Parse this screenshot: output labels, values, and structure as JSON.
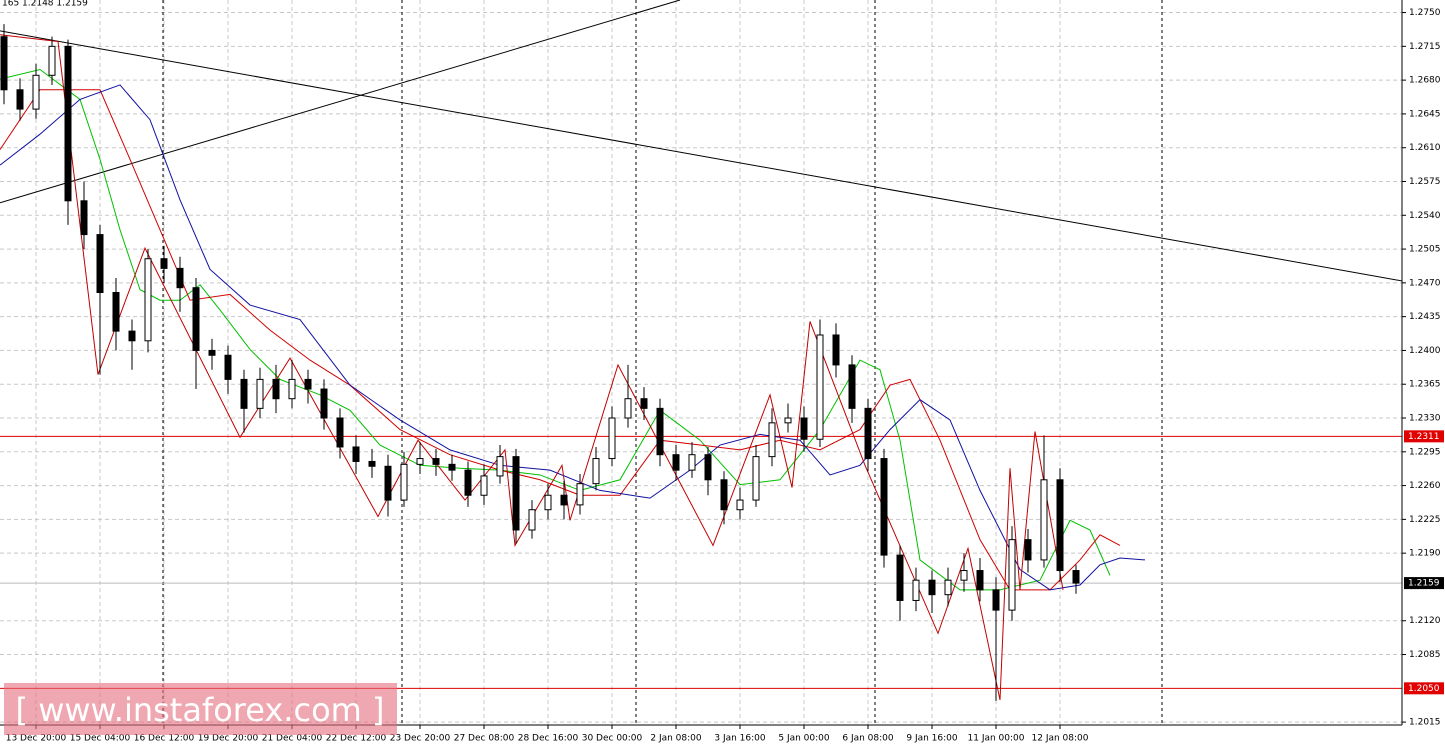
{
  "chart_data": {
    "type": "candlestick",
    "info": "165 1.2148 1.2159",
    "watermark": "[ www.instaforex.com ]",
    "xlim": [
      0,
      175.25
    ],
    "ylim": [
      1.2012,
      1.2763
    ],
    "xticks": [
      {
        "value": 4.5,
        "label": "13 Dec 20:00"
      },
      {
        "value": 12.5,
        "label": "15 Dec 04:00"
      },
      {
        "value": 20.5,
        "label": "16 Dec 12:00"
      },
      {
        "value": 28.5,
        "label": "19 Dec 20:00"
      },
      {
        "value": 36.5,
        "label": "21 Dec 04:00"
      },
      {
        "value": 44.5,
        "label": "22 Dec 12:00"
      },
      {
        "value": 52.5,
        "label": "23 Dec 20:00"
      },
      {
        "value": 60.5,
        "label": "27 Dec 08:00"
      },
      {
        "value": 68.5,
        "label": "28 Dec 16:00"
      },
      {
        "value": 76.5,
        "label": "30 Dec 00:00"
      },
      {
        "value": 84.5,
        "label": "2 Jan 08:00"
      },
      {
        "value": 92.5,
        "label": "3 Jan 16:00"
      },
      {
        "value": 100.5,
        "label": "5 Jan 00:00"
      },
      {
        "value": 108.5,
        "label": "6 Jan 08:00"
      },
      {
        "value": 116.5,
        "label": "9 Jan 16:00"
      },
      {
        "value": 124.5,
        "label": "11 Jan 00:00"
      },
      {
        "value": 132.5,
        "label": "12 Jan 08:00"
      }
    ],
    "yticks": [
      {
        "value": 1.275,
        "label": "1.2750"
      },
      1.2715,
      {
        "value": 1.268,
        "label": "1.2680"
      },
      1.2645,
      {
        "value": 1.261,
        "label": "1.2610"
      },
      1.2575,
      {
        "value": 1.254,
        "label": "1.2540"
      },
      1.2505,
      {
        "value": 1.247,
        "label": "1.2470"
      },
      1.2435,
      {
        "value": 1.24,
        "label": "1.2400"
      },
      1.2365,
      {
        "value": 1.233,
        "label": "1.2330"
      },
      1.2295,
      {
        "value": 1.226,
        "label": "1.2260"
      },
      1.2225,
      {
        "value": 1.219,
        "label": "1.2190"
      },
      {
        "value": 1.212,
        "label": "1.2120"
      },
      1.2085,
      1.2015
    ],
    "grid": true,
    "bull_color": "#ffffff",
    "bear_color": "#000000",
    "candles": {
      "x": [
        0.5,
        2.5,
        4.5,
        6.5,
        8.5,
        10.5,
        12.5,
        14.5,
        16.5,
        18.5,
        20.5,
        22.5,
        24.5,
        26.5,
        28.5,
        30.5,
        32.5,
        34.5,
        36.5,
        38.5,
        40.5,
        42.5,
        44.5,
        46.5,
        48.5,
        50.5,
        52.5,
        54.5,
        56.5,
        58.5,
        60.5,
        62.5,
        64.5,
        66.5,
        68.5,
        70.5,
        72.5,
        74.5,
        76.5,
        78.5,
        80.5,
        82.5,
        84.5,
        86.5,
        88.5,
        90.5,
        92.5,
        94.5,
        96.5,
        98.5,
        100.5,
        102.5,
        104.5,
        106.5,
        108.5,
        110.5,
        112.5,
        114.5,
        116.5,
        118.5,
        120.5,
        122.5,
        124.5,
        126.5,
        128.5,
        130.5,
        132.5,
        134.5
      ],
      "ohlc": [
        [
          1.2725,
          1.2738,
          1.2655,
          1.267
        ],
        [
          1.267,
          1.2682,
          1.2638,
          1.265
        ],
        [
          1.265,
          1.2697,
          1.264,
          1.2685
        ],
        [
          1.2685,
          1.2725,
          1.2675,
          1.2715
        ],
        [
          1.2715,
          1.2722,
          1.253,
          1.2555
        ],
        [
          1.2555,
          1.2575,
          1.2505,
          1.252
        ],
        [
          1.252,
          1.253,
          1.2375,
          1.246
        ],
        [
          1.246,
          1.2475,
          1.24,
          1.242
        ],
        [
          1.242,
          1.2432,
          1.238,
          1.241
        ],
        [
          1.241,
          1.2505,
          1.2398,
          1.2495
        ],
        [
          1.2495,
          1.2508,
          1.247,
          1.2485
        ],
        [
          1.2485,
          1.2497,
          1.244,
          1.2465
        ],
        [
          1.2465,
          1.2475,
          1.236,
          1.24
        ],
        [
          1.24,
          1.2412,
          1.238,
          1.2395
        ],
        [
          1.2395,
          1.2405,
          1.2355,
          1.237
        ],
        [
          1.237,
          1.238,
          1.2315,
          1.234
        ],
        [
          1.234,
          1.2382,
          1.233,
          1.237
        ],
        [
          1.237,
          1.2385,
          1.2335,
          1.235
        ],
        [
          1.235,
          1.239,
          1.234,
          1.237
        ],
        [
          1.237,
          1.238,
          1.2345,
          1.236
        ],
        [
          1.236,
          1.237,
          1.2318,
          1.233
        ],
        [
          1.233,
          1.234,
          1.2288,
          1.23
        ],
        [
          1.23,
          1.2312,
          1.2272,
          1.2285
        ],
        [
          1.2285,
          1.2298,
          1.2268,
          1.228
        ],
        [
          1.228,
          1.2292,
          1.2228,
          1.2245
        ],
        [
          1.2245,
          1.2295,
          1.2238,
          1.2282
        ],
        [
          1.2282,
          1.2305,
          1.2272,
          1.2288
        ],
        [
          1.2288,
          1.2298,
          1.227,
          1.2282
        ],
        [
          1.2282,
          1.2292,
          1.2265,
          1.2276
        ],
        [
          1.2276,
          1.2285,
          1.2238,
          1.225
        ],
        [
          1.225,
          1.2282,
          1.224,
          1.227
        ],
        [
          1.227,
          1.2302,
          1.2262,
          1.229
        ],
        [
          1.229,
          1.2298,
          1.22,
          1.2214
        ],
        [
          1.2214,
          1.2245,
          1.2205,
          1.2235
        ],
        [
          1.2235,
          1.2262,
          1.2225,
          1.225
        ],
        [
          1.225,
          1.2265,
          1.2225,
          1.224
        ],
        [
          1.224,
          1.2272,
          1.223,
          1.2262
        ],
        [
          1.2262,
          1.23,
          1.2255,
          1.2288
        ],
        [
          1.2288,
          1.2342,
          1.228,
          1.233
        ],
        [
          1.233,
          1.2385,
          1.232,
          1.235
        ],
        [
          1.235,
          1.2362,
          1.2328,
          1.234
        ],
        [
          1.234,
          1.235,
          1.228,
          1.2292
        ],
        [
          1.2292,
          1.2302,
          1.2265,
          1.2276
        ],
        [
          1.2276,
          1.2305,
          1.2268,
          1.2292
        ],
        [
          1.2292,
          1.23,
          1.225,
          1.2266
        ],
        [
          1.2266,
          1.2275,
          1.222,
          1.2235
        ],
        [
          1.2235,
          1.2258,
          1.2225,
          1.2245
        ],
        [
          1.2245,
          1.2302,
          1.2238,
          1.229
        ],
        [
          1.229,
          1.234,
          1.228,
          1.2325
        ],
        [
          1.2325,
          1.2345,
          1.2315,
          1.233
        ],
        [
          1.233,
          1.2342,
          1.2295,
          1.2308
        ],
        [
          1.2308,
          1.2432,
          1.23,
          1.2416
        ],
        [
          1.2416,
          1.2428,
          1.2372,
          1.2385
        ],
        [
          1.2385,
          1.2395,
          1.2325,
          1.234
        ],
        [
          1.234,
          1.235,
          1.2275,
          1.2288
        ],
        [
          1.2288,
          1.2298,
          1.2175,
          1.2188
        ],
        [
          1.2188,
          1.2198,
          1.212,
          1.2141
        ],
        [
          1.2141,
          1.2175,
          1.213,
          1.2162
        ],
        [
          1.2162,
          1.2172,
          1.2128,
          1.2147
        ],
        [
          1.2147,
          1.2175,
          1.2135,
          1.2162
        ],
        [
          1.2162,
          1.219,
          1.215,
          1.2172
        ],
        [
          1.2172,
          1.2185,
          1.214,
          1.2152
        ],
        [
          1.2152,
          1.2165,
          1.2037,
          1.2131
        ],
        [
          1.2131,
          1.2218,
          1.212,
          1.2204
        ],
        [
          1.2204,
          1.2215,
          1.217,
          1.2183
        ],
        [
          1.2183,
          1.2312,
          1.2175,
          1.2266
        ],
        [
          1.2266,
          1.2278,
          1.216,
          1.2172
        ],
        [
          1.2172,
          1.2178,
          1.2148,
          1.2159
        ]
      ]
    },
    "series": [
      {
        "color": "#00c000",
        "x": [
          0,
          5,
          10,
          12.5,
          15,
          17.5,
          20,
          22.5,
          25,
          27.5,
          31.25,
          35,
          40,
          43.75,
          47.5,
          52.5,
          57.5,
          62.5,
          67.5,
          72.5,
          77.5,
          82.5,
          87.5,
          92.5,
          97.5,
          102.5,
          107.5,
          110,
          112.5,
          115,
          120,
          125,
          130,
          133.75,
          136.25,
          138.75
        ],
        "values": [
          1.2681,
          1.2691,
          1.266,
          1.2598,
          1.2525,
          1.2463,
          1.2452,
          1.2452,
          1.2468,
          1.2442,
          1.2401,
          1.237,
          1.2354,
          1.2338,
          1.2302,
          1.2281,
          1.2278,
          1.2276,
          1.2271,
          1.2255,
          1.2266,
          1.2338,
          1.2307,
          1.2261,
          1.2266,
          1.2318,
          1.239,
          1.238,
          1.2307,
          1.2183,
          1.2152,
          1.2152,
          1.2162,
          1.2224,
          1.2214,
          1.2167
        ]
      },
      {
        "color": "#d00000",
        "x": [
          0,
          5,
          12.5,
          16.25,
          20,
          23.75,
          28.75,
          33.75,
          38.75,
          43.75,
          50,
          56.25,
          62.5,
          67.5,
          72.5,
          77.5,
          82.5,
          87.5,
          92.5,
          97.5,
          102.5,
          107.5,
          111.25,
          113.75,
          117.5,
          122.5,
          126.25,
          131.25,
          135,
          137.5,
          140
        ],
        "values": [
          1.2608,
          1.267,
          1.267,
          1.2598,
          1.2525,
          1.2452,
          1.2458,
          1.2421,
          1.239,
          1.2364,
          1.2318,
          1.2292,
          1.2276,
          1.2266,
          1.225,
          1.225,
          1.2307,
          1.2302,
          1.2297,
          1.2307,
          1.2297,
          1.2318,
          1.2364,
          1.237,
          1.2307,
          1.2204,
          1.2152,
          1.2152,
          1.2183,
          1.2209,
          1.2198
        ]
      },
      {
        "color": "#1010a0",
        "x": [
          0,
          5,
          10,
          15,
          18.75,
          22.5,
          26.25,
          31.25,
          37.5,
          43.75,
          50,
          56.25,
          62.5,
          68.75,
          75,
          81.25,
          86.25,
          90,
          95,
          100,
          103.75,
          107.5,
          111.25,
          115,
          118.75,
          122.5,
          127.5,
          131.25,
          135,
          137.5,
          140,
          143.125
        ],
        "values": [
          1.2592,
          1.2624,
          1.266,
          1.2675,
          1.2639,
          1.2556,
          1.2484,
          1.2447,
          1.2432,
          1.2364,
          1.2328,
          1.2297,
          1.2281,
          1.2276,
          1.2255,
          1.2247,
          1.2276,
          1.2302,
          1.2313,
          1.2307,
          1.2271,
          1.2281,
          1.2318,
          1.2349,
          1.2328,
          1.2255,
          1.2173,
          1.2152,
          1.2157,
          1.2178,
          1.2185,
          1.2183
        ]
      },
      {
        "color": "#c00000",
        "x": [
          0,
          7.25,
          12.25,
          18.125,
          30,
          36.25,
          47.25,
          52.25,
          58.125,
          63.125,
          64.375,
          70.25,
          71.25,
          77.25,
          89.125,
          96.25,
          99,
          101.25,
          108.125,
          117.25,
          121,
          125,
          126.25,
          127.5,
          129.375,
          132.875
        ],
        "values": [
          1.2727,
          1.272,
          1.2375,
          1.2506,
          1.231,
          1.2392,
          1.2228,
          1.2307,
          1.2245,
          1.2297,
          1.2198,
          1.2281,
          1.2224,
          1.2385,
          1.2198,
          1.2354,
          1.2258,
          1.243,
          1.2281,
          1.2107,
          1.2195,
          1.2038,
          1.2278,
          1.2152,
          1.2316,
          1.2152
        ]
      }
    ],
    "trendlines": [
      {
        "color": "#000000",
        "x": [
          0,
          175.25
        ],
        "values": [
          1.2731,
          1.2472
        ]
      },
      {
        "color": "#000000",
        "x": [
          0,
          85
        ],
        "values": [
          1.2553,
          1.2763
        ]
      }
    ],
    "levels": [
      {
        "value": 1.2311,
        "label": "1.2311",
        "color": "#e00000"
      },
      {
        "value": 1.205,
        "label": "1.2050",
        "color": "#e00000"
      },
      {
        "value": 1.2159,
        "label": "1.2159",
        "color": "#000000"
      }
    ]
  }
}
